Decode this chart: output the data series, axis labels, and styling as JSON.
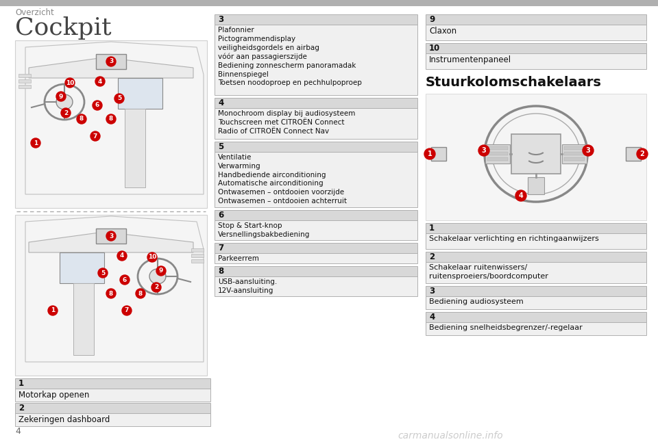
{
  "page_bg": "#ffffff",
  "header_bar_color": "#a0a0a0",
  "header_text": "Overzicht",
  "header_text_color": "#888888",
  "title_cockpit": "Cockpit",
  "title_stuur": "Stuurkolomschakelaars",
  "number_bg": "#cc0000",
  "page_number": "4",
  "watermark": "carmanualsonline.info",
  "left_boxes": [
    {
      "num": "1",
      "text": "Motorkap openen"
    },
    {
      "num": "2",
      "text": "Zekeringen dashboard"
    }
  ],
  "middle_boxes": [
    {
      "num": "3",
      "text": "Plafonnier\nPictogrammendisplay\nveiligheidsgordels en airbag\nvóór aan passagierszijde\nBediening zonnescherm panoramadak\nBinnenspiegel\nToetsen noodoproep en pechhulpoproep"
    },
    {
      "num": "4",
      "text": "Monochroom display bij audiosysteem\nTouchscreen met CITROËN Connect\nRadio of CITROËN Connect Nav"
    },
    {
      "num": "5",
      "text": "Ventilatie\nVerwarming\nHandbediende airconditioning\nAutomatische airconditioning\nOntwasemen – ontdooien voorzijde\nOntwasemen – ontdooien achterruit"
    },
    {
      "num": "6",
      "text": "Stop & Start-knop\nVersnellingsbakbediening"
    },
    {
      "num": "7",
      "text": "Parkeerrem"
    },
    {
      "num": "8",
      "text": "USB-aansluiting.\n12V-aansluiting"
    }
  ],
  "right_top_boxes": [
    {
      "num": "9",
      "text": "Claxon"
    },
    {
      "num": "10",
      "text": "Instrumentenpaneel"
    }
  ],
  "right_bottom_boxes": [
    {
      "num": "1",
      "text": "Schakelaar verlichting en richtingaanwijzers"
    },
    {
      "num": "2",
      "text": "Schakelaar ruitenwissers/\nruitensproeiers/boordcomputer"
    },
    {
      "num": "3",
      "text": "Bediening audiosysteem"
    },
    {
      "num": "4",
      "text": "Bediening snelheidsbegrenzer/-regelaar"
    }
  ]
}
